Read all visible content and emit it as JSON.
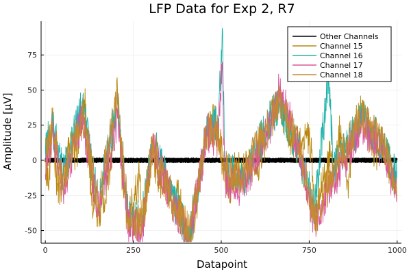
{
  "chart_data": {
    "type": "line",
    "title": "LFP Data for Exp 2, R7",
    "xlabel": "Datapoint",
    "ylabel": "Amplitude [μV]",
    "xlim": [
      -12,
      1012
    ],
    "ylim": [
      -59,
      99
    ],
    "xticks": [
      0,
      250,
      500,
      750,
      1000
    ],
    "yticks": [
      -50,
      -25,
      0,
      25,
      50,
      75
    ],
    "xtick_labels": [
      "0",
      "250",
      "500",
      "750",
      "1000"
    ],
    "ytick_labels": [
      "-50",
      "-25",
      "0",
      "25",
      "50",
      "75"
    ],
    "grid": true,
    "legend_position": "top-right",
    "n_points": 1000,
    "series": [
      {
        "name": "Other Channels",
        "color": "#000000",
        "envelope": [
          -1.5,
          1.5
        ]
      },
      {
        "name": "Channel 15",
        "color": "#b8860b",
        "keypoints": [
          [
            0,
            5
          ],
          [
            10,
            -20
          ],
          [
            20,
            28
          ],
          [
            35,
            -22
          ],
          [
            50,
            -15
          ],
          [
            70,
            10
          ],
          [
            90,
            5
          ],
          [
            105,
            35
          ],
          [
            115,
            40
          ],
          [
            130,
            -25
          ],
          [
            150,
            -35
          ],
          [
            170,
            -30
          ],
          [
            190,
            10
          ],
          [
            205,
            50
          ],
          [
            220,
            -20
          ],
          [
            235,
            -45
          ],
          [
            250,
            -30
          ],
          [
            270,
            -10
          ],
          [
            275,
            -50
          ],
          [
            290,
            -20
          ],
          [
            305,
            10
          ],
          [
            320,
            -15
          ],
          [
            340,
            -10
          ],
          [
            360,
            -30
          ],
          [
            380,
            -25
          ],
          [
            400,
            -50
          ],
          [
            410,
            -55
          ],
          [
            430,
            -30
          ],
          [
            450,
            5
          ],
          [
            460,
            20
          ],
          [
            480,
            30
          ],
          [
            490,
            20
          ],
          [
            500,
            10
          ],
          [
            510,
            -10
          ],
          [
            525,
            -20
          ],
          [
            540,
            -5
          ],
          [
            560,
            -10
          ],
          [
            580,
            0
          ],
          [
            600,
            -5
          ],
          [
            620,
            10
          ],
          [
            640,
            30
          ],
          [
            650,
            35
          ],
          [
            665,
            40
          ],
          [
            680,
            30
          ],
          [
            700,
            15
          ],
          [
            720,
            10
          ],
          [
            740,
            20
          ],
          [
            755,
            10
          ],
          [
            765,
            -40
          ],
          [
            780,
            -20
          ],
          [
            800,
            -10
          ],
          [
            810,
            5
          ],
          [
            820,
            -10
          ],
          [
            840,
            25
          ],
          [
            860,
            -15
          ],
          [
            880,
            25
          ],
          [
            900,
            35
          ],
          [
            920,
            20
          ],
          [
            940,
            5
          ],
          [
            960,
            15
          ],
          [
            980,
            -5
          ],
          [
            1000,
            -20
          ]
        ]
      },
      {
        "name": "Channel 16",
        "color": "#20b2aa",
        "keypoints": [
          [
            0,
            10
          ],
          [
            20,
            25
          ],
          [
            50,
            -10
          ],
          [
            105,
            40
          ],
          [
            150,
            -30
          ],
          [
            205,
            40
          ],
          [
            235,
            -40
          ],
          [
            275,
            -40
          ],
          [
            305,
            15
          ],
          [
            360,
            -25
          ],
          [
            410,
            -55
          ],
          [
            460,
            25
          ],
          [
            490,
            25
          ],
          [
            503,
            94
          ],
          [
            510,
            -5
          ],
          [
            560,
            -15
          ],
          [
            640,
            30
          ],
          [
            665,
            40
          ],
          [
            720,
            5
          ],
          [
            765,
            -35
          ],
          [
            805,
            58
          ],
          [
            820,
            -5
          ],
          [
            880,
            20
          ],
          [
            900,
            30
          ],
          [
            960,
            10
          ],
          [
            1000,
            -15
          ]
        ]
      },
      {
        "name": "Channel 17",
        "color": "#d9569b",
        "keypoints": [
          [
            0,
            -10
          ],
          [
            20,
            20
          ],
          [
            50,
            -20
          ],
          [
            105,
            30
          ],
          [
            150,
            -35
          ],
          [
            205,
            30
          ],
          [
            235,
            -45
          ],
          [
            275,
            -50
          ],
          [
            305,
            10
          ],
          [
            360,
            -30
          ],
          [
            410,
            -55
          ],
          [
            460,
            20
          ],
          [
            490,
            15
          ],
          [
            503,
            70
          ],
          [
            510,
            -15
          ],
          [
            560,
            -20
          ],
          [
            640,
            25
          ],
          [
            665,
            50
          ],
          [
            720,
            10
          ],
          [
            765,
            -45
          ],
          [
            820,
            -15
          ],
          [
            880,
            15
          ],
          [
            900,
            25
          ],
          [
            960,
            5
          ],
          [
            1000,
            -25
          ]
        ]
      },
      {
        "name": "Channel 18",
        "color": "#c68a2f",
        "keypoints": [
          [
            0,
            0
          ],
          [
            20,
            25
          ],
          [
            50,
            -15
          ],
          [
            105,
            35
          ],
          [
            150,
            -30
          ],
          [
            205,
            45
          ],
          [
            235,
            -40
          ],
          [
            275,
            -45
          ],
          [
            305,
            12
          ],
          [
            360,
            -28
          ],
          [
            410,
            -52
          ],
          [
            460,
            22
          ],
          [
            490,
            18
          ],
          [
            510,
            -8
          ],
          [
            560,
            -12
          ],
          [
            640,
            28
          ],
          [
            665,
            42
          ],
          [
            720,
            12
          ],
          [
            765,
            -42
          ],
          [
            820,
            -8
          ],
          [
            880,
            22
          ],
          [
            900,
            32
          ],
          [
            960,
            12
          ],
          [
            1000,
            -22
          ]
        ]
      }
    ]
  }
}
